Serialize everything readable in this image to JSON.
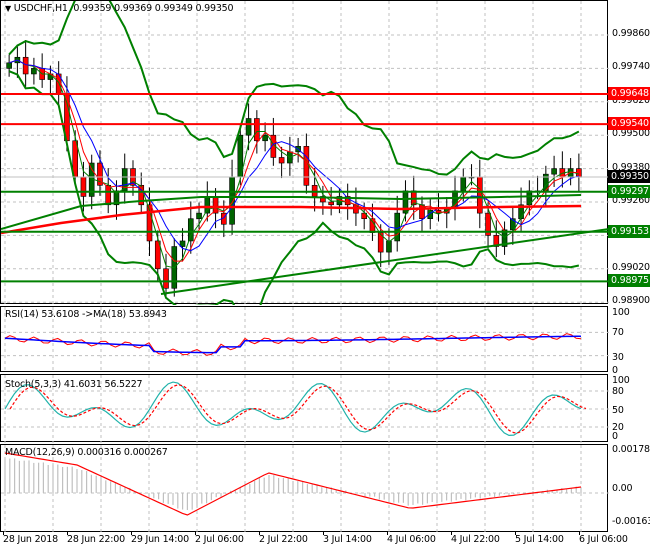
{
  "header": {
    "symbol": "USDCHF,H1",
    "ohlc": "0.99359 0.99369 0.99349 0.99350",
    "menu_icon": "triangle-down-icon"
  },
  "colors": {
    "bull": "#006400",
    "bear": "#ff0000",
    "band": "#008000",
    "resistance": "#ff0000",
    "support": "#008000",
    "ma_fast": "#ff0000",
    "ma_slow": "#0000ff",
    "ma_green": "#008000",
    "rsi": "#ff0000",
    "rsi_ma": "#0000ff",
    "stoch_main": "#20b2aa",
    "stoch_signal": "#ff0000",
    "macd_hist": "#c0c0c0",
    "macd_signal": "#ff0000",
    "grid": "#c0c0c0",
    "current_price_bg": "#000000"
  },
  "price_axis": {
    "ticks": [
      "0.99860",
      "0.99740",
      "0.99620",
      "0.99500",
      "0.99380",
      "0.99260",
      "0.99140",
      "0.99020",
      "0.98900"
    ],
    "tags": [
      {
        "value": "0.99648",
        "type": "resistance"
      },
      {
        "value": "0.99540",
        "type": "resistance"
      },
      {
        "value": "0.99350",
        "type": "current"
      },
      {
        "value": "0.99297",
        "type": "support"
      },
      {
        "value": "0.99153",
        "type": "support"
      },
      {
        "value": "0.98975",
        "type": "support"
      }
    ]
  },
  "rsi_panel": {
    "title": "RSI(14) 53.6108  ->MA(18) 53.8943",
    "ticks": [
      "100",
      "70",
      "30",
      "0"
    ]
  },
  "stoch_panel": {
    "title": "Stoch(5,3,3) 41.6031 56.5227",
    "ticks": [
      "100",
      "80",
      "50",
      "20",
      "0"
    ]
  },
  "macd_panel": {
    "title": "MACD(12,26,9) 0.000316 0.000267",
    "ticks": [
      "0.001787",
      "0.00",
      "-0.001634"
    ]
  },
  "time_axis": {
    "labels": [
      "28 Jun 2018",
      "28 Jun 22:00",
      "29 Jun 14:00",
      "2 Jul 06:00",
      "2 Jul 22:00",
      "3 Jul 14:00",
      "4 Jul 06:00",
      "4 Jul 22:00",
      "5 Jul 14:00",
      "6 Jul 06:00"
    ]
  },
  "chart_data": {
    "type": "candlestick",
    "title": "USDCHF,H1",
    "ohlc_last": {
      "open": 0.99359,
      "high": 0.99369,
      "low": 0.99349,
      "close": 0.9935
    },
    "ylim": [
      0.9889,
      0.9998
    ],
    "horizontal_levels": {
      "resistance": [
        0.99648,
        0.9954
      ],
      "support": [
        0.99297,
        0.99153,
        0.98975
      ]
    },
    "trendline": {
      "from": {
        "x_label": "29 Jun 14:00",
        "price": 0.98905
      },
      "to": {
        "x_label": "6 Jul 06:00",
        "price": 0.99155
      }
    },
    "x_labels": [
      "28 Jun 2018",
      "28 Jun 22:00",
      "29 Jun 14:00",
      "2 Jul 06:00",
      "2 Jul 22:00",
      "3 Jul 14:00",
      "4 Jul 06:00",
      "4 Jul 22:00",
      "5 Jul 14:00",
      "6 Jul 06:00"
    ],
    "closes_sample": [
      0.9976,
      0.9978,
      0.9972,
      0.9974,
      0.997,
      0.9972,
      0.9965,
      0.9948,
      0.9935,
      0.9928,
      0.994,
      0.9932,
      0.9925,
      0.993,
      0.9938,
      0.9932,
      0.9925,
      0.9912,
      0.9902,
      0.9895,
      0.991,
      0.9912,
      0.992,
      0.9922,
      0.9928,
      0.9922,
      0.9918,
      0.9935,
      0.995,
      0.9956,
      0.9948,
      0.995,
      0.9942,
      0.994,
      0.9944,
      0.9946,
      0.9932,
      0.9928,
      0.9926,
      0.9925,
      0.9928,
      0.9925,
      0.9922,
      0.992,
      0.9915,
      0.9908,
      0.9912,
      0.9922,
      0.993,
      0.9925,
      0.992,
      0.9923,
      0.9922,
      0.9924,
      0.993,
      0.9935,
      0.9935,
      0.9922,
      0.9914,
      0.991,
      0.9916,
      0.992,
      0.9925,
      0.993,
      0.993,
      0.9936,
      0.9938,
      0.9935,
      0.9938,
      0.9935
    ],
    "indicators": {
      "RSI(14)": 53.6108,
      "RSI_MA(18)": 53.8943,
      "Stoch_main": 41.6031,
      "Stoch_signal": 56.5227,
      "MACD": 0.000316,
      "MACD_signal": 0.000267
    },
    "rsi_levels": [
      100,
      70,
      30,
      0
    ],
    "stoch_levels": [
      100,
      80,
      50,
      20,
      0
    ],
    "macd_range": [
      -0.001634,
      0.001787
    ]
  }
}
